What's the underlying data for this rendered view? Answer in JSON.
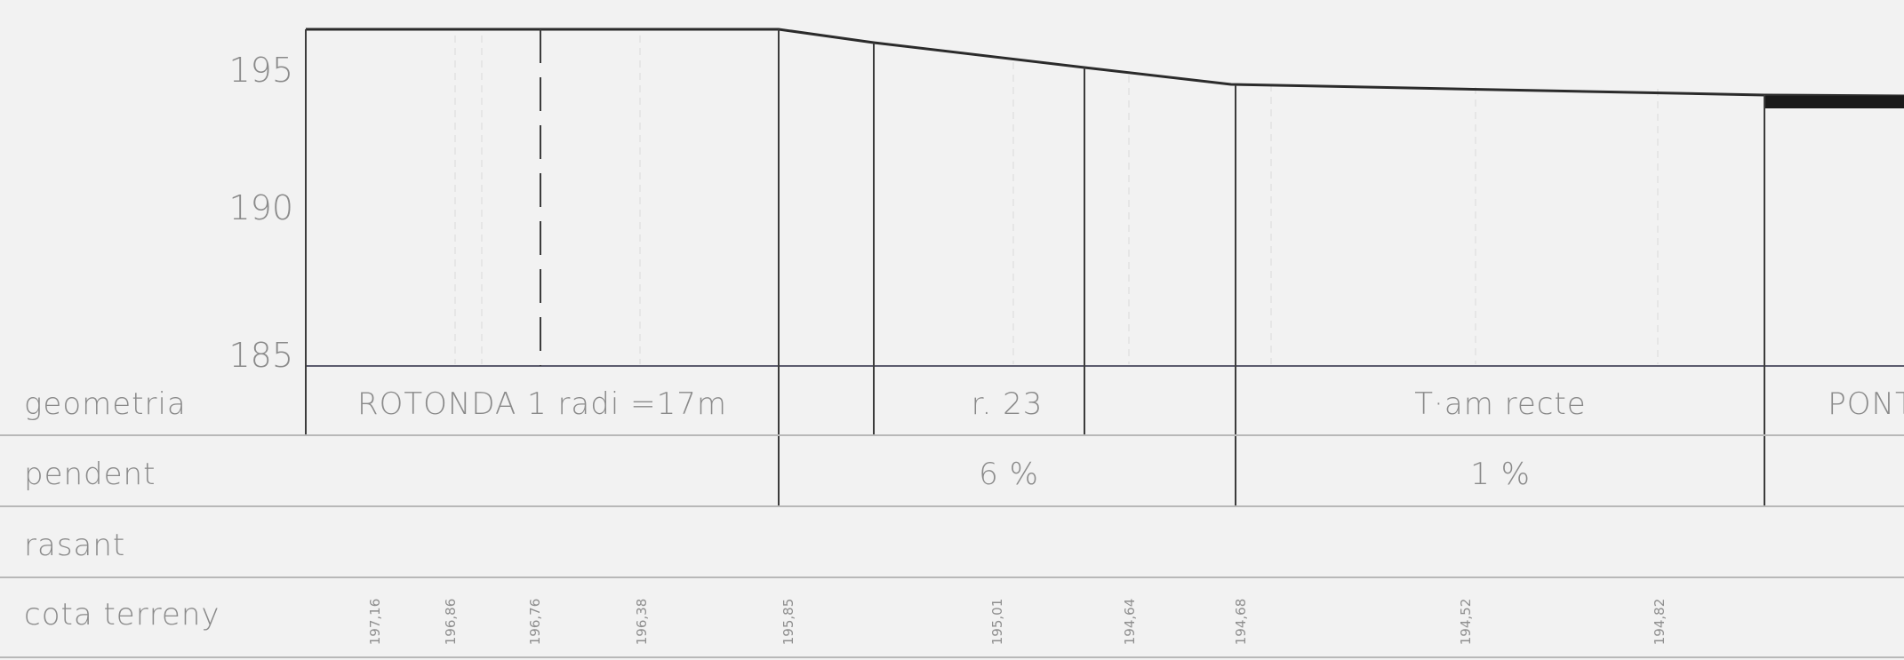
{
  "axis": {
    "ticks": [
      "195",
      "190",
      "185"
    ]
  },
  "row_labels": {
    "geometria": "geometria",
    "pendent": "pendent",
    "rasant": "rasant",
    "cota_terreny": "cota terreny"
  },
  "geometria": {
    "rotonda": "ROTONDA 1 radi =17m",
    "radius": "r. 23",
    "tram": "T·am recte",
    "pont": "PONT"
  },
  "pendent": {
    "slope_1": "6 %",
    "slope_2": "1 %"
  },
  "terrain_elevations": [
    "197,16",
    "196,86",
    "196,76",
    "196,38",
    "195,85",
    "195,01",
    "194,64",
    "194,68",
    "194,52",
    "194,82"
  ]
}
